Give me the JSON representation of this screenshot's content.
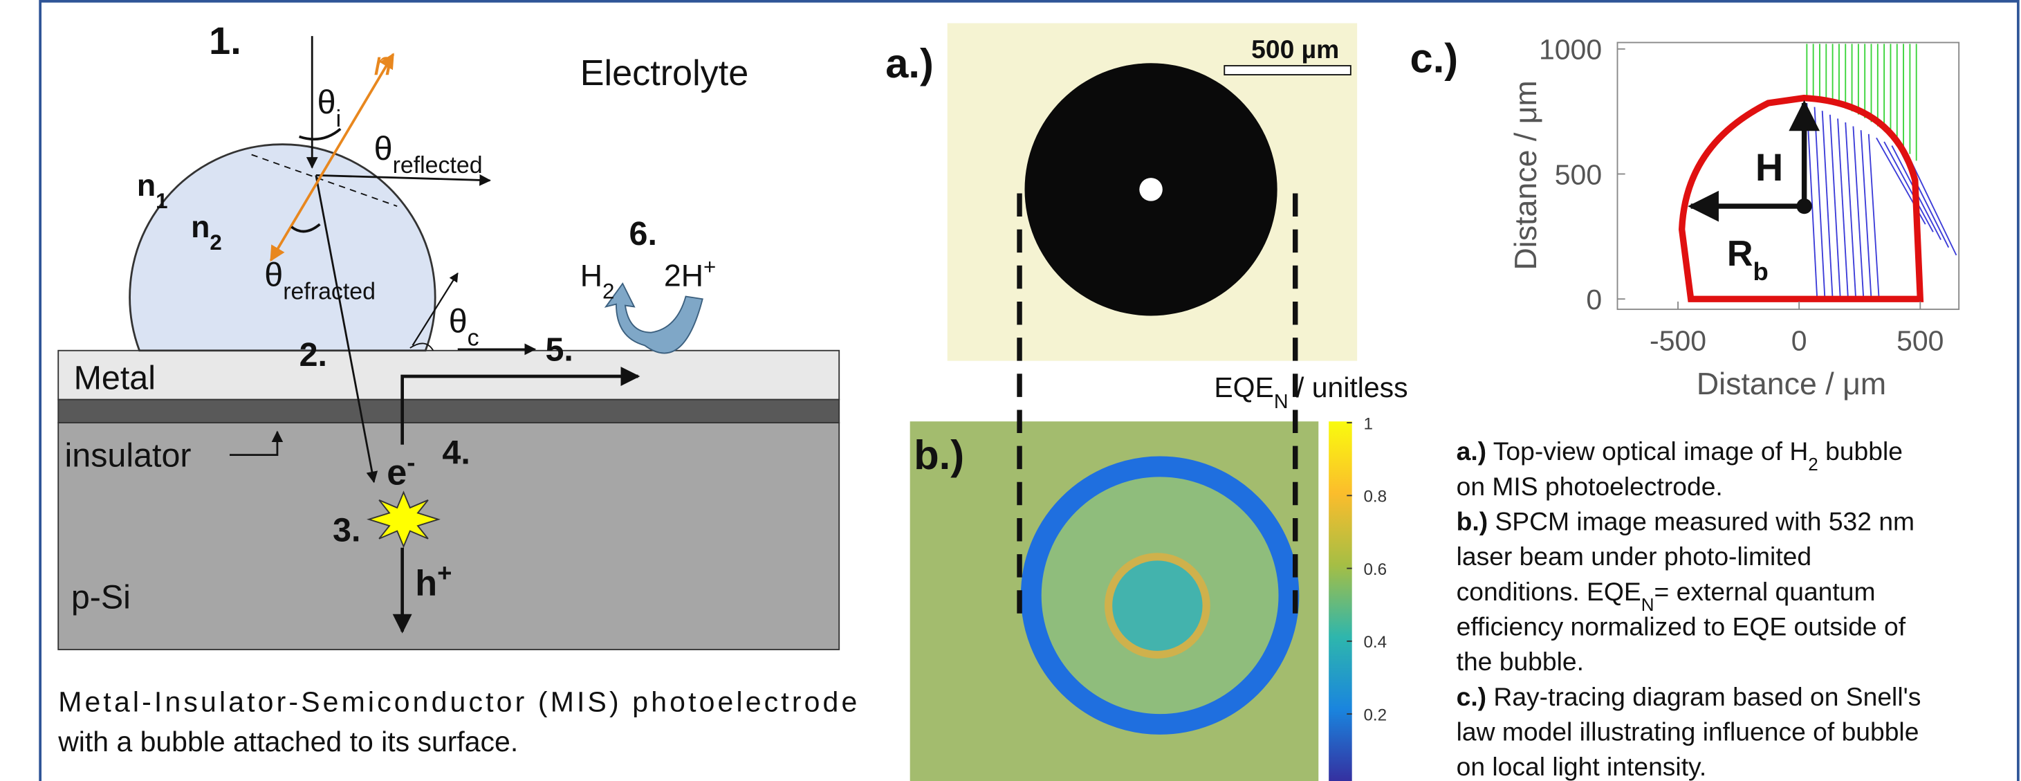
{
  "panel_1": {
    "number": "1.",
    "normal": "n",
    "theta_i": {
      "main": "θ",
      "sub": "i"
    },
    "medium": "Electrolyte",
    "theta_reflected": {
      "main": "θ",
      "sub": "reflected"
    },
    "n1": {
      "main": "n",
      "sub": "1"
    },
    "n2": {
      "main": "n",
      "sub": "2"
    },
    "theta_refracted": {
      "main": "θ",
      "sub": "refracted"
    },
    "step_6": "6.",
    "h2": {
      "main": "H",
      "sub": "2"
    },
    "protons": {
      "main": "2H",
      "sup": "+"
    },
    "theta_c": {
      "main": "θ",
      "sub": "c"
    },
    "step_2": "2.",
    "step_5": "5.",
    "metal": "Metal",
    "insulator": "insulator",
    "electron": {
      "main": "e",
      "sup": "-"
    },
    "step_4": "4.",
    "step_3": "3.",
    "hole": {
      "main": "h",
      "sup": "+"
    },
    "semiconductor": "p-Si",
    "caption": [
      "Metal-Insulator-Semiconductor (MIS) photoelectrode",
      "with a bubble attached to its surface."
    ]
  },
  "panel_a": {
    "label": "a.)",
    "scale_bar": "500 µm"
  },
  "panel_b": {
    "label": "b.)",
    "colorbar_title": {
      "main": "EQE",
      "sub": "N",
      "after": " / unitless"
    },
    "colorbar_ticks": [
      1,
      0.8,
      0.6,
      0.4,
      0.2
    ]
  },
  "panel_c": {
    "label": "c.)",
    "ylabel": "Distance / μm",
    "xlabel": "Distance / μm",
    "yticks": [
      1000,
      500,
      0
    ],
    "xticks": [
      -500,
      0,
      500
    ],
    "height_label": "H",
    "radius_label": {
      "main": "R",
      "sub": "b"
    }
  },
  "caption": {
    "lines": [
      [
        {
          "text": "a.)",
          "bold": true
        },
        {
          "text": " Top-view optical image of H"
        },
        {
          "text": "2",
          "sub": true
        },
        {
          "text": " bubble"
        }
      ],
      [
        {
          "text": "on MIS photoelectrode."
        }
      ],
      [
        {
          "text": "b.)",
          "bold": true
        },
        {
          "text": " SPCM image measured with 532 nm"
        }
      ],
      [
        {
          "text": "laser beam under photo-limited"
        }
      ],
      [
        {
          "text": "conditions. EQE"
        },
        {
          "text": "N",
          "sub": true
        },
        {
          "text": "= external quantum"
        }
      ],
      [
        {
          "text": "efficiency normalized to EQE outside of"
        }
      ],
      [
        {
          "text": "the bubble."
        }
      ],
      [
        {
          "text": "c.)",
          "bold": true
        },
        {
          "text": " Ray-tracing diagram based on Snell's"
        }
      ],
      [
        {
          "text": "law model illustrating influence of bubble"
        }
      ],
      [
        {
          "text": "on local light intensity."
        }
      ]
    ]
  }
}
